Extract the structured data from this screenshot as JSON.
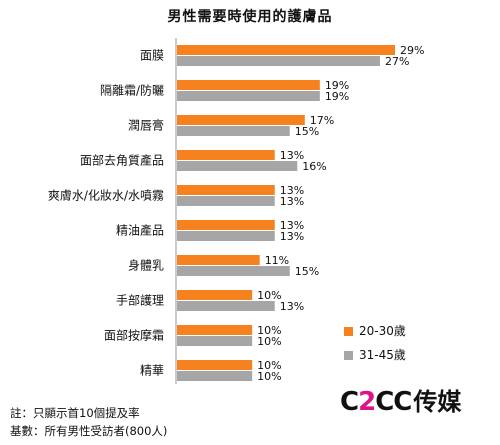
{
  "colors": {
    "series_1": "#f5821f",
    "series_2": "#a6a6a6",
    "axis": "#999999"
  },
  "chart_data": {
    "type": "bar",
    "orientation": "horizontal",
    "title": "男性需要時使用的護膚品",
    "categories": [
      "面膜",
      "隔離霜/防曬",
      "潤唇膏",
      "面部去角質產品",
      "爽膚水/化妝水/水噴霧",
      "精油產品",
      "身體乳",
      "手部護理",
      "面部按摩霜",
      "精華"
    ],
    "series": [
      {
        "name": "20-30歲",
        "values": [
          29,
          19,
          17,
          13,
          13,
          13,
          11,
          10,
          10,
          10
        ]
      },
      {
        "name": "31-45歲",
        "values": [
          27,
          19,
          15,
          16,
          13,
          13,
          15,
          13,
          10,
          10
        ]
      }
    ],
    "value_suffix": "%",
    "xlim": [
      0,
      30
    ],
    "legend_position": "bottom-right",
    "grid": false
  },
  "logo": {
    "prefix": "C",
    "highlight": "2",
    "suffix": "CC",
    "chinese": "传媒"
  },
  "notes": [
    "註：只顯示首10個提及率",
    "基數：所有男性受訪者(800人)"
  ]
}
